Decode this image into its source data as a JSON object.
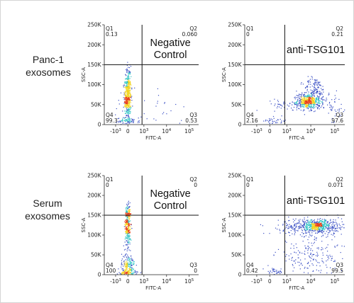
{
  "row_labels": [
    [
      "Panc-1",
      "exosomes"
    ],
    [
      "Serum",
      "exosomes"
    ]
  ],
  "colors": {
    "low": "#3a4fc4",
    "mid": "#35c6c6",
    "high": "#f2d41f",
    "peak": "#e8421a",
    "gate": "#111111"
  },
  "chart_data": [
    {
      "type": "scatter",
      "plot_style": "flow-cytometry-density",
      "sample": "Panc-1 exosomes",
      "xlabel": "FITC-A",
      "ylabel": "SSC-A",
      "xscale": "biexponential",
      "xlim": [
        -1000,
        100000
      ],
      "ylim": [
        0,
        250000
      ],
      "xticks": [
        "-10^3",
        "0",
        "10^3",
        "10^4",
        "10^5"
      ],
      "yticks": [
        "0",
        "50K",
        "100K",
        "150K",
        "200K",
        "250K"
      ],
      "gate": {
        "x": 1000,
        "y": 150000
      },
      "annotation": "Negative Control",
      "quadrants": [
        {
          "label": "Q1",
          "value": "0.13"
        },
        {
          "label": "Q2",
          "value": "0.060"
        },
        {
          "label": "Q3",
          "value": "0.53"
        },
        {
          "label": "Q4",
          "value": "99.3"
        }
      ]
    },
    {
      "type": "scatter",
      "plot_style": "flow-cytometry-density",
      "sample": "Panc-1 exosomes",
      "xlabel": "FITC-A",
      "ylabel": "SSC-A",
      "xscale": "biexponential",
      "xlim": [
        -1000,
        100000
      ],
      "ylim": [
        0,
        250000
      ],
      "xticks": [
        "-10^3",
        "0",
        "10^3",
        "10^4",
        "10^5"
      ],
      "yticks": [
        "0",
        "50K",
        "100K",
        "150K",
        "200K",
        "250K"
      ],
      "gate": {
        "x": 1000,
        "y": 150000
      },
      "annotation": "anti-TSG101",
      "quadrants": [
        {
          "label": "Q1",
          "value": "0"
        },
        {
          "label": "Q2",
          "value": "0.21"
        },
        {
          "label": "Q3",
          "value": "97.6"
        },
        {
          "label": "Q4",
          "value": "2.16"
        }
      ]
    },
    {
      "type": "scatter",
      "plot_style": "flow-cytometry-density",
      "sample": "Serum exosomes",
      "xlabel": "FITC-A",
      "ylabel": "SSC-A",
      "xscale": "biexponential",
      "xlim": [
        -1000,
        100000
      ],
      "ylim": [
        0,
        250000
      ],
      "xticks": [
        "-10^3",
        "0",
        "10^3",
        "10^4",
        "10^5"
      ],
      "yticks": [
        "0",
        "50K",
        "100K",
        "150K",
        "200K",
        "250K"
      ],
      "gate": {
        "x": 1000,
        "y": 150000
      },
      "annotation": "Negative Control",
      "quadrants": [
        {
          "label": "Q1",
          "value": "0"
        },
        {
          "label": "Q2",
          "value": "0"
        },
        {
          "label": "Q3",
          "value": "0"
        },
        {
          "label": "Q4",
          "value": "100"
        }
      ]
    },
    {
      "type": "scatter",
      "plot_style": "flow-cytometry-density",
      "sample": "Serum exosomes",
      "xlabel": "FITC-A",
      "ylabel": "SSC-A",
      "xscale": "biexponential",
      "xlim": [
        -1000,
        100000
      ],
      "ylim": [
        0,
        250000
      ],
      "xticks": [
        "-10^3",
        "0",
        "10^3",
        "10^4",
        "10^5"
      ],
      "yticks": [
        "0",
        "50K",
        "100K",
        "150K",
        "200K",
        "250K"
      ],
      "gate": {
        "x": 1000,
        "y": 150000
      },
      "annotation": "anti-TSG101",
      "quadrants": [
        {
          "label": "Q1",
          "value": "0"
        },
        {
          "label": "Q2",
          "value": "0.071"
        },
        {
          "label": "Q3",
          "value": "99.5"
        },
        {
          "label": "Q4",
          "value": "0.42"
        }
      ]
    }
  ]
}
